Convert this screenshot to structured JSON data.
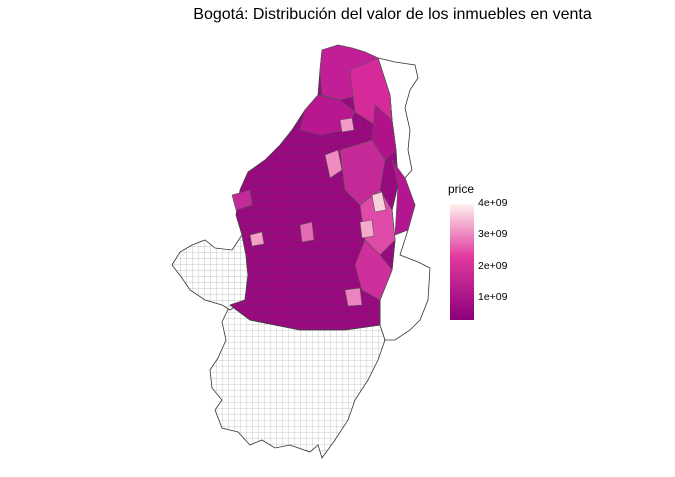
{
  "title": "Bogotá: Distribución del valor de los inmuebles en venta",
  "legend": {
    "title": "price",
    "ticks": [
      {
        "label": "4e+09",
        "value": 4000000000
      },
      {
        "label": "3e+09",
        "value": 3000000000
      },
      {
        "label": "2e+09",
        "value": 2000000000
      },
      {
        "label": "1e+09",
        "value": 1000000000
      }
    ],
    "range": [
      300000000,
      4000000000
    ],
    "colors": {
      "low": "#8b007a",
      "mid": "#e23aa0",
      "high": "#fff2ee"
    }
  },
  "map": {
    "no_data_fill": "#ffffff",
    "border_color": "#555555"
  }
}
